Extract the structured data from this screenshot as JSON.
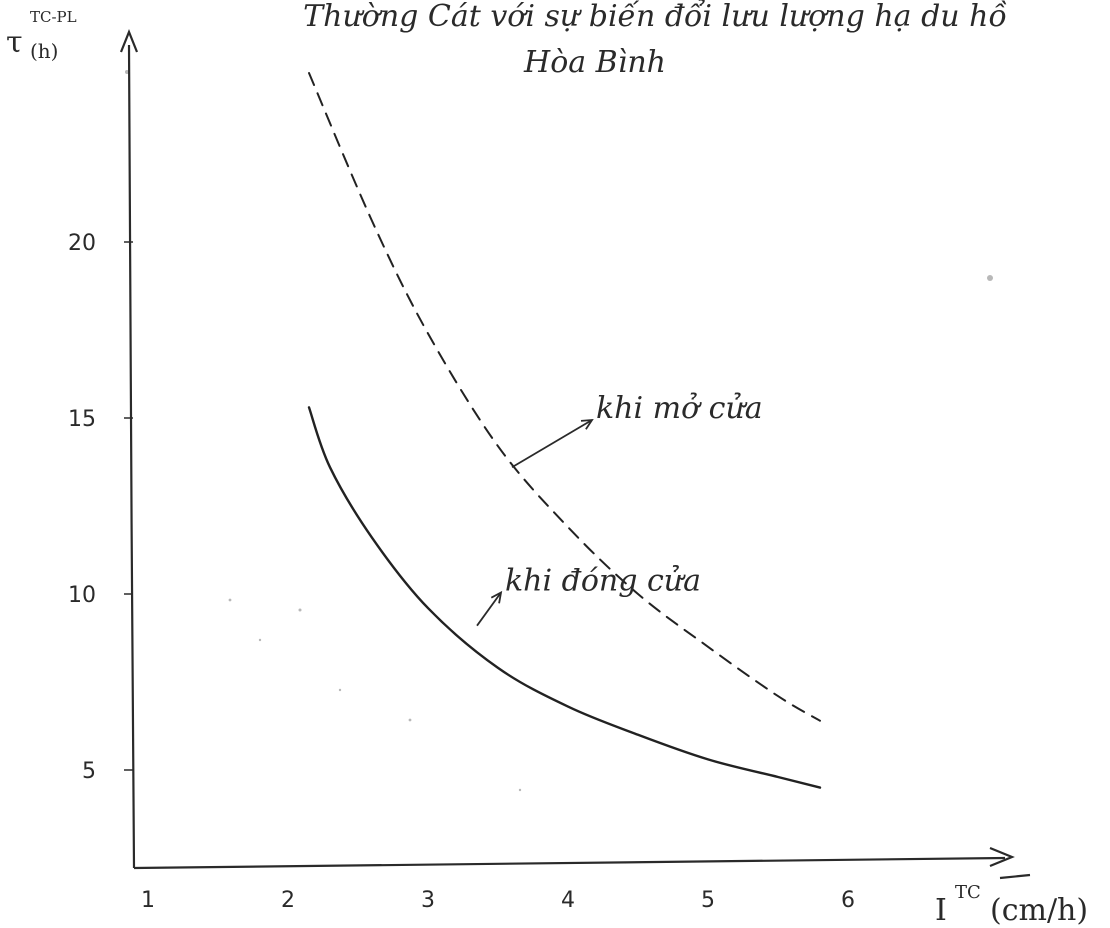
{
  "chart_data": {
    "type": "line",
    "title_lines": [
      "Thường Cát với sự biến đổi lưu lượng hạ du hồ",
      "Hòa Bình"
    ],
    "xlabel": "I",
    "xlabel_superscript": "TC",
    "xlabel_unit": "(cm/h)",
    "ylabel": "τ",
    "ylabel_sub": "(h)",
    "ylabel_superscript": "TC-PL",
    "x_ticks": [
      "1",
      "2",
      "3",
      "4",
      "5",
      "6"
    ],
    "y_ticks": [
      "5",
      "10",
      "15",
      "20"
    ],
    "xlim": [
      1,
      7
    ],
    "ylim": [
      2,
      26
    ],
    "grid": false,
    "series": [
      {
        "name": "khi mở cửa",
        "style": "dashed",
        "points": [
          [
            2.15,
            24.8
          ],
          [
            2.6,
            20.6
          ],
          [
            3.0,
            17.4
          ],
          [
            3.5,
            14.2
          ],
          [
            4.0,
            11.9
          ],
          [
            4.5,
            10.0
          ],
          [
            5.0,
            8.5
          ],
          [
            5.5,
            7.1
          ],
          [
            5.8,
            6.4
          ]
        ]
      },
      {
        "name": "khi đóng cửa",
        "style": "solid",
        "points": [
          [
            2.15,
            15.3
          ],
          [
            2.3,
            13.6
          ],
          [
            2.6,
            11.6
          ],
          [
            3.0,
            9.6
          ],
          [
            3.5,
            7.9
          ],
          [
            4.0,
            6.8
          ],
          [
            4.5,
            6.0
          ],
          [
            5.0,
            5.3
          ],
          [
            5.5,
            4.8
          ],
          [
            5.8,
            4.5
          ]
        ]
      }
    ],
    "annotations": [
      {
        "text": "khi mở cửa",
        "x": 4.2,
        "y": 15.0,
        "arrow_to": [
          3.6,
          13.6
        ]
      },
      {
        "text": "khi đóng cửa",
        "x": 3.55,
        "y": 10.1,
        "arrow_to": [
          3.35,
          9.1
        ]
      }
    ],
    "color": "#222222"
  }
}
